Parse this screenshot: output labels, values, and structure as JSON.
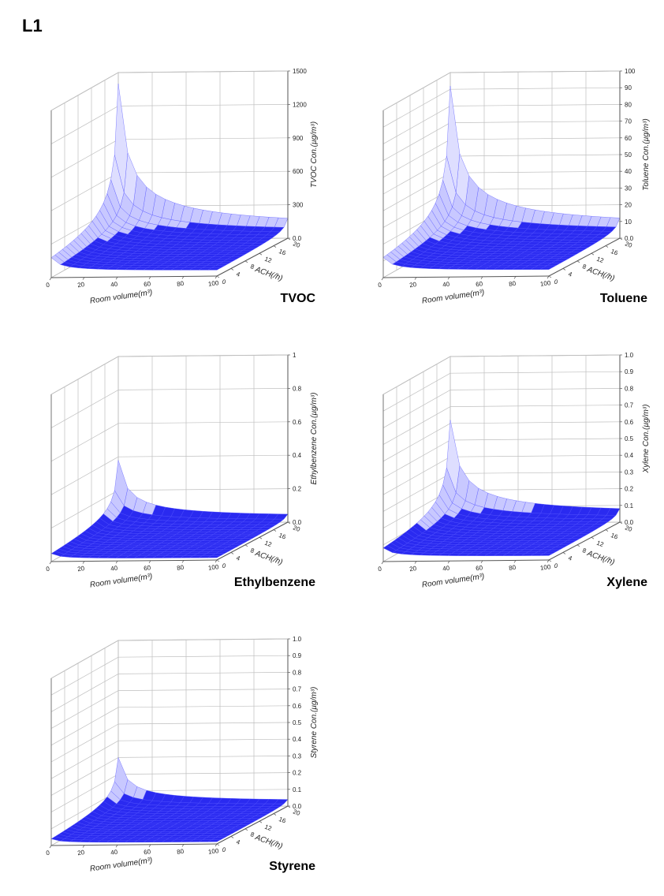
{
  "page_title": "L1",
  "background_color": "#ffffff",
  "chart_common": {
    "x_label": "Room volume(m³)",
    "y_label": "ACH(/h)",
    "x_range": [
      0,
      100
    ],
    "y_range": [
      0,
      20
    ],
    "x_tick_step": 20,
    "y_tick_step": 4,
    "surface_fill": "#2a2af0",
    "surface_top": "#c8c8ff",
    "surface_peak": "#dedeff",
    "wireframe_color": "#5050ff",
    "grid_color": "#bfbfbf",
    "axis_color": "#555555",
    "font_family": "Arial",
    "label_fontsize": 10,
    "tick_fontsize": 8,
    "aspect": "3d-isometric"
  },
  "charts": [
    {
      "id": "tvoc",
      "label": "TVOC",
      "z_label": "TVOC Con.(µg/m³)",
      "z_range": [
        0,
        1500
      ],
      "z_tick_step": 300,
      "peak_value_est": 1400,
      "base_value_est": 40
    },
    {
      "id": "toluene",
      "label": "Toluene",
      "z_label": "Toluene Con.(µg/m³)",
      "z_range": [
        0,
        100
      ],
      "z_tick_step": 10,
      "peak_value_est": 92,
      "base_value_est": 3
    },
    {
      "id": "ethylbenzene",
      "label": "Ethylbenzene",
      "z_label": "Ethylbenzene Con.(µg/m³)",
      "z_range": [
        0,
        1.0
      ],
      "z_tick_step": 0.2,
      "peak_value_est": 0.38,
      "base_value_est": 0.01
    },
    {
      "id": "xylene",
      "label": "Xylene",
      "z_label": "Xylene Con.(µg/m³)",
      "z_range": [
        0,
        1.0
      ],
      "z_tick_step": 0.1,
      "peak_value_est": 0.62,
      "base_value_est": 0.02
    },
    {
      "id": "styrene",
      "label": "Styrene",
      "z_label": "Styrene Con.(µg/m³)",
      "z_range": [
        0,
        1.0
      ],
      "z_tick_step": 0.1,
      "peak_value_est": 0.3,
      "base_value_est": 0.01
    }
  ]
}
